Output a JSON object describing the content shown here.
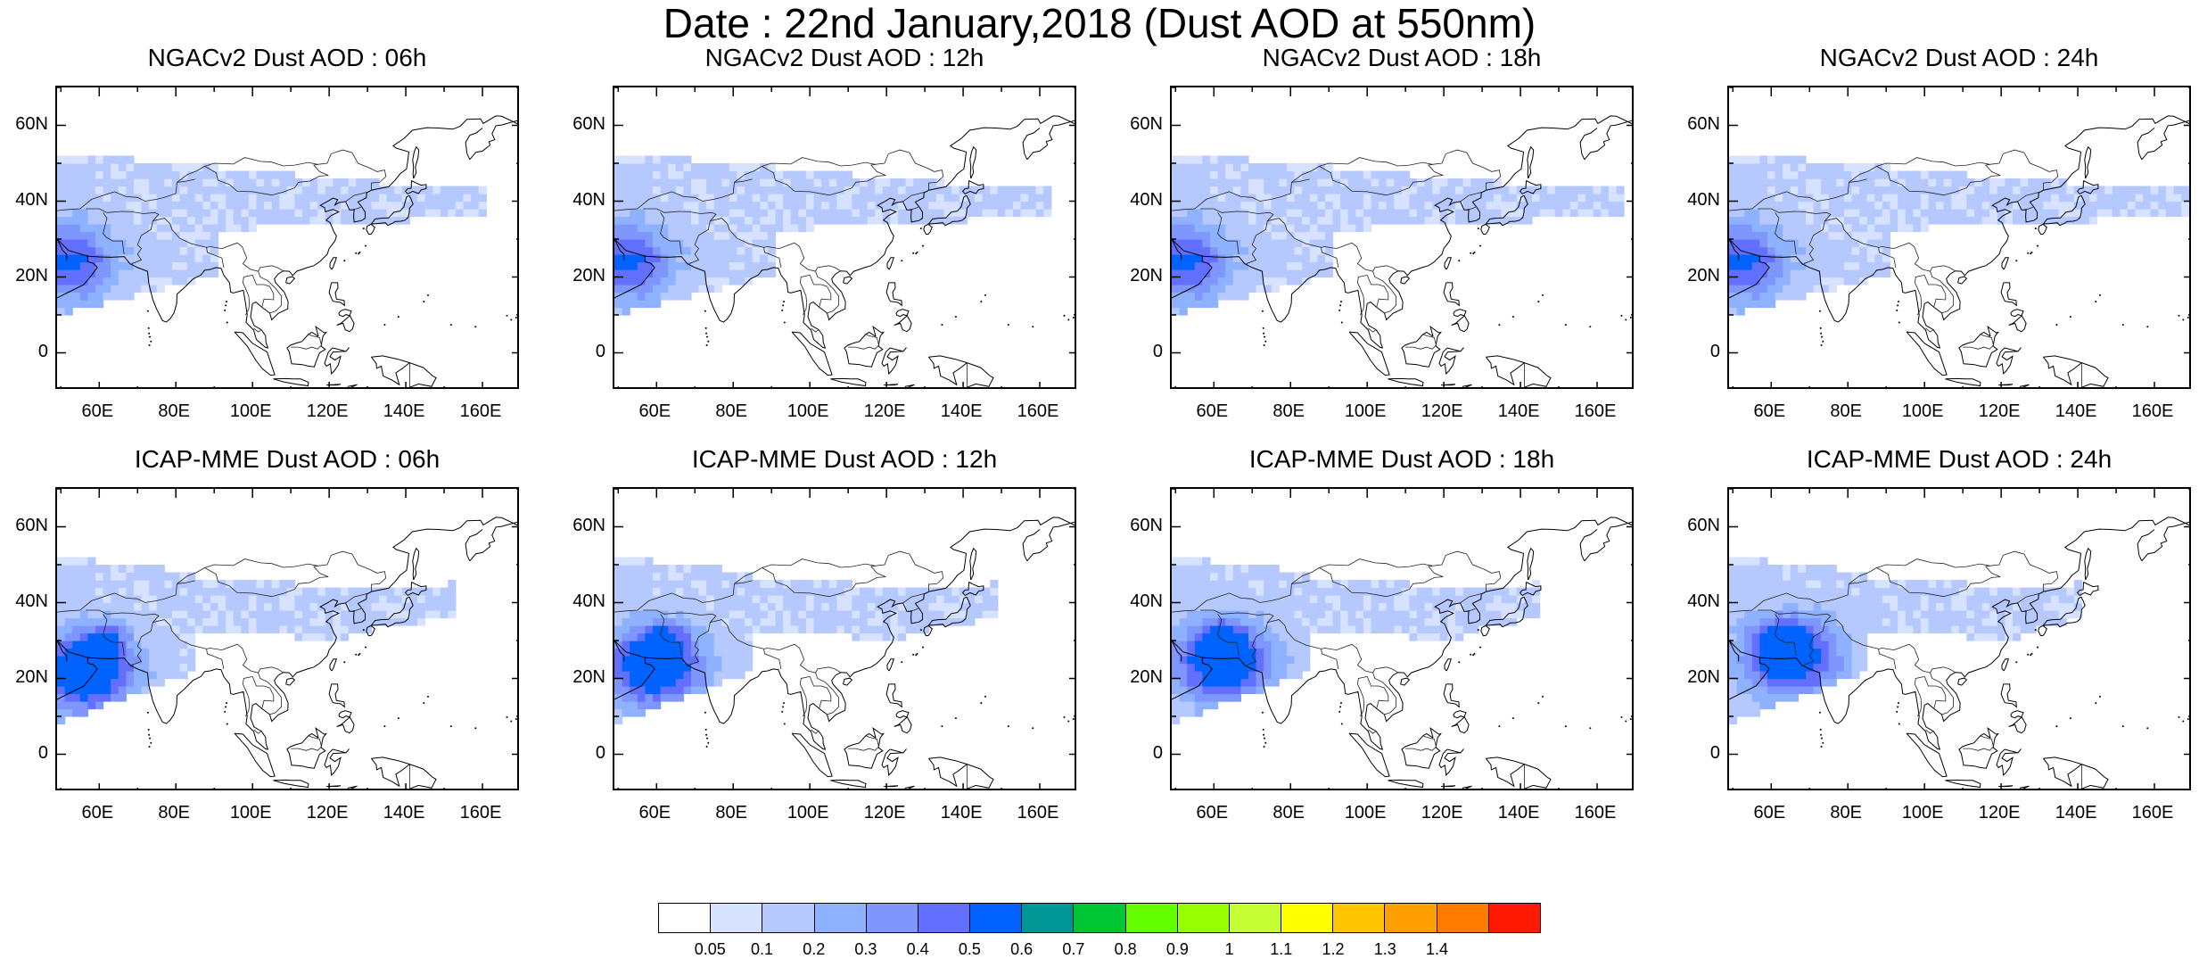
{
  "title": "Date : 22nd January,2018 (Dust AOD at 550nm)",
  "x_ticks": [
    "60E",
    "80E",
    "100E",
    "120E",
    "140E",
    "160E"
  ],
  "y_ticks": [
    "60N",
    "40N",
    "20N",
    "0"
  ],
  "panels": [
    {
      "title": "NGACv2 Dust AOD : 06h",
      "model": "NGACv2",
      "hour": "06h"
    },
    {
      "title": "NGACv2 Dust AOD : 12h",
      "model": "NGACv2",
      "hour": "12h"
    },
    {
      "title": "NGACv2 Dust AOD : 18h",
      "model": "NGACv2",
      "hour": "18h"
    },
    {
      "title": "NGACv2 Dust AOD : 24h",
      "model": "NGACv2",
      "hour": "24h"
    },
    {
      "title": "ICAP-MME Dust AOD : 06h",
      "model": "ICAP-MME",
      "hour": "06h"
    },
    {
      "title": "ICAP-MME Dust AOD : 12h",
      "model": "ICAP-MME",
      "hour": "12h"
    },
    {
      "title": "ICAP-MME Dust AOD : 18h",
      "model": "ICAP-MME",
      "hour": "18h"
    },
    {
      "title": "ICAP-MME Dust AOD : 24h",
      "model": "ICAP-MME",
      "hour": "24h"
    }
  ],
  "colorbar": {
    "labels": [
      "0.05",
      "0.1",
      "0.2",
      "0.3",
      "0.4",
      "0.5",
      "0.6",
      "0.7",
      "0.8",
      "0.9",
      "1",
      "1.1",
      "1.2",
      "1.3",
      "1.4"
    ],
    "colors": [
      "#ffffff",
      "#d6e2ff",
      "#b5c9ff",
      "#8eb2ff",
      "#7f96ff",
      "#6370ff",
      "#0063ff",
      "#009696",
      "#00c633",
      "#63ff00",
      "#96ff00",
      "#c6ff33",
      "#ffff00",
      "#ffc600",
      "#ffa000",
      "#ff7c00",
      "#ff1900"
    ]
  }
}
